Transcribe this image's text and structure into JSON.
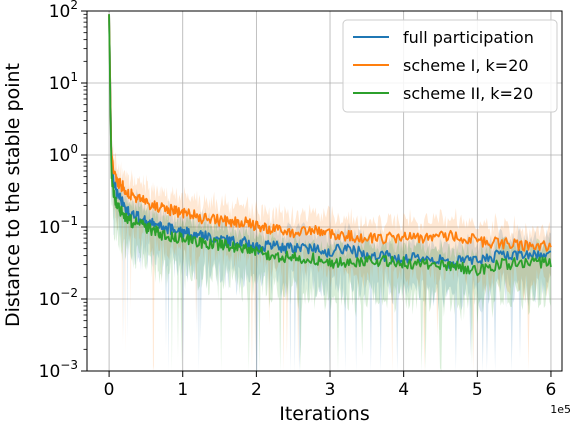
{
  "chart_data": {
    "type": "line",
    "xlabel": "Iterations",
    "ylabel": "Distance to the stable point",
    "x_offset_label": "1e5",
    "x_scale": "linear",
    "y_scale": "log",
    "xlim": [
      -0.3,
      6.15
    ],
    "ylim": [
      0.001,
      100
    ],
    "x_ticks": [
      0,
      1,
      2,
      3,
      4,
      5,
      6
    ],
    "x_tick_labels": [
      "0",
      "1",
      "2",
      "3",
      "4",
      "5",
      "6"
    ],
    "y_ticks": [
      0.001,
      0.01,
      0.1,
      1,
      10,
      100
    ],
    "y_tick_labels": [
      {
        "base": "10",
        "exp": "−3"
      },
      {
        "base": "10",
        "exp": "−2"
      },
      {
        "base": "10",
        "exp": "−1"
      },
      {
        "base": "10",
        "exp": "0"
      },
      {
        "base": "10",
        "exp": "1"
      },
      {
        "base": "10",
        "exp": "2"
      }
    ],
    "grid": true,
    "legend_position": "top-right",
    "series": [
      {
        "name": "full participation",
        "color": "#1f77b4",
        "x": [
          0,
          0.03,
          0.06,
          0.1,
          0.2,
          0.3,
          0.5,
          0.7,
          1.0,
          1.3,
          1.6,
          1.9,
          2.0,
          2.2,
          2.5,
          2.8,
          3.0,
          3.2,
          3.5,
          3.8,
          4.0,
          4.3,
          4.6,
          5.0,
          5.3,
          5.6,
          6.0
        ],
        "y": [
          90,
          1.2,
          0.45,
          0.3,
          0.2,
          0.15,
          0.12,
          0.1,
          0.085,
          0.075,
          0.065,
          0.06,
          0.05,
          0.055,
          0.05,
          0.052,
          0.045,
          0.05,
          0.042,
          0.04,
          0.035,
          0.038,
          0.032,
          0.035,
          0.04,
          0.042,
          0.04
        ]
      },
      {
        "name": "scheme I, k=20",
        "color": "#ff7f0e",
        "x": [
          0,
          0.03,
          0.06,
          0.1,
          0.2,
          0.3,
          0.5,
          0.7,
          1.0,
          1.3,
          1.6,
          1.9,
          2.0,
          2.2,
          2.5,
          2.8,
          3.0,
          3.2,
          3.5,
          3.8,
          4.0,
          4.3,
          4.6,
          5.0,
          5.3,
          5.6,
          6.0
        ],
        "y": [
          90,
          1.2,
          0.6,
          0.45,
          0.35,
          0.28,
          0.22,
          0.18,
          0.16,
          0.13,
          0.12,
          0.115,
          0.1,
          0.095,
          0.085,
          0.09,
          0.08,
          0.075,
          0.072,
          0.07,
          0.075,
          0.07,
          0.075,
          0.065,
          0.06,
          0.055,
          0.055
        ]
      },
      {
        "name": "scheme II, k=20",
        "color": "#2ca02c",
        "x": [
          0,
          0.03,
          0.06,
          0.1,
          0.2,
          0.3,
          0.5,
          0.7,
          1.0,
          1.3,
          1.6,
          1.9,
          2.0,
          2.2,
          2.5,
          2.8,
          3.0,
          3.2,
          3.5,
          3.8,
          4.0,
          4.3,
          4.6,
          5.0,
          5.3,
          5.6,
          6.0
        ],
        "y": [
          90,
          0.6,
          0.3,
          0.2,
          0.15,
          0.12,
          0.1,
          0.08,
          0.07,
          0.06,
          0.055,
          0.05,
          0.045,
          0.04,
          0.038,
          0.036,
          0.03,
          0.032,
          0.034,
          0.033,
          0.032,
          0.03,
          0.03,
          0.025,
          0.03,
          0.032,
          0.033
        ]
      }
    ]
  }
}
